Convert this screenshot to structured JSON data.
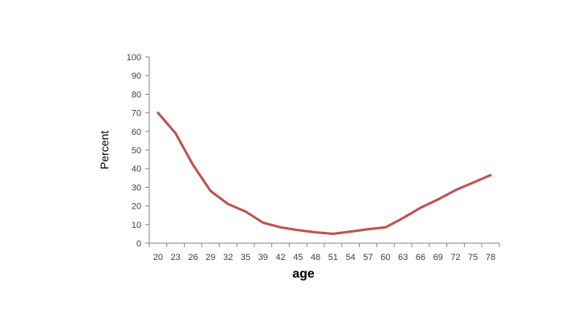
{
  "chart_data": {
    "type": "line",
    "title": "",
    "xlabel": "age",
    "ylabel": "Percent",
    "categories": [
      "20",
      "23",
      "26",
      "29",
      "32",
      "35",
      "39",
      "42",
      "45",
      "48",
      "51",
      "54",
      "57",
      "60",
      "63",
      "66",
      "69",
      "72",
      "75",
      "78"
    ],
    "series": [
      {
        "values": [
          70,
          59,
          42,
          28,
          21,
          17,
          11,
          8.5,
          7,
          5.8,
          5,
          6.2,
          7.5,
          8.5,
          13.5,
          19,
          23.5,
          28.5,
          32.5,
          36.5
        ],
        "color": "#C0504D"
      }
    ],
    "ylim": [
      0,
      100
    ],
    "yticks": [
      0,
      10,
      20,
      30,
      40,
      50,
      60,
      70,
      80,
      90,
      100
    ],
    "grid": false,
    "legend": "none"
  }
}
